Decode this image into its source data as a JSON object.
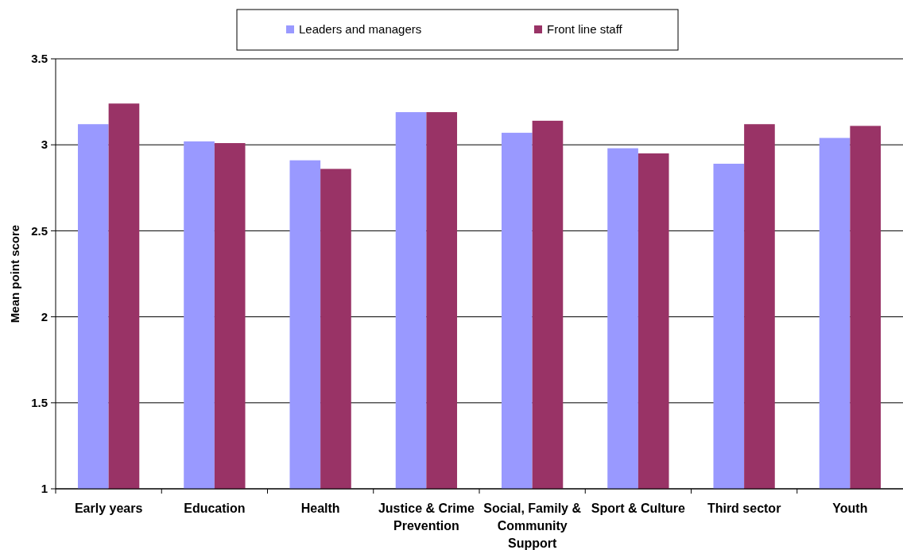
{
  "chart_data": {
    "type": "bar",
    "ylabel": "Mean point score",
    "categories": [
      "Early years",
      "Education",
      "Health",
      "Justice & Crime Prevention",
      "Social, Family & Community Support",
      "Sport & Culture",
      "Third sector",
      "Youth"
    ],
    "series": [
      {
        "name": "Leaders and managers",
        "color": "#9999ff",
        "values": [
          3.12,
          3.02,
          2.91,
          3.19,
          3.07,
          2.98,
          2.89,
          3.04
        ]
      },
      {
        "name": "Front line staff",
        "color": "#993366",
        "values": [
          3.24,
          3.01,
          2.86,
          3.19,
          3.14,
          2.95,
          3.12,
          3.11
        ]
      }
    ],
    "ylim": [
      1,
      3.5
    ],
    "yticks": [
      1,
      1.5,
      2,
      2.5,
      3,
      3.5
    ],
    "grid": "y",
    "legend": "top"
  }
}
